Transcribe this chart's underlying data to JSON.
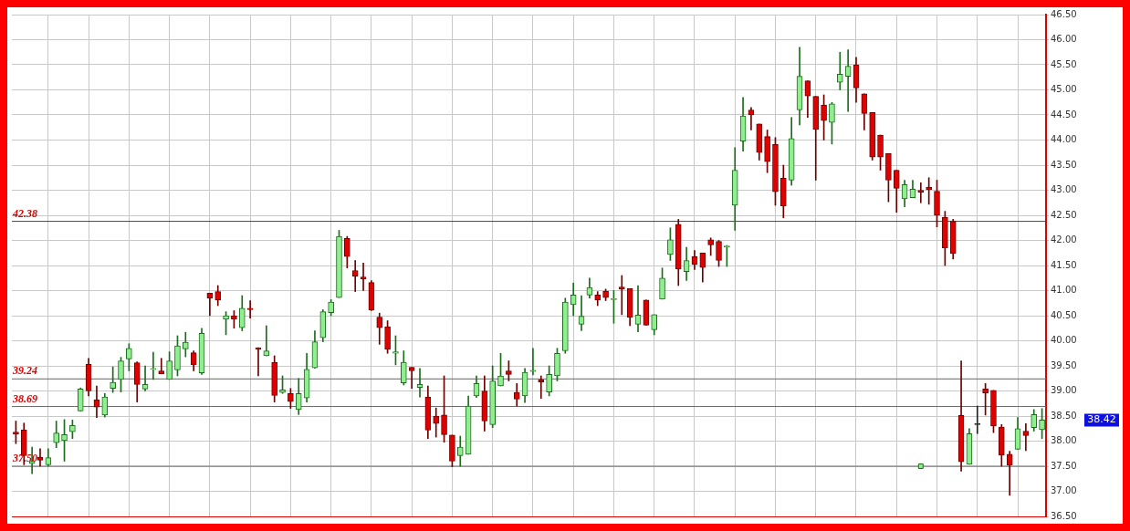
{
  "chart_data": {
    "type": "candlestick",
    "tick_labels": "y",
    "grid": true,
    "categories": [
      null,
      null,
      null,
      null,
      null,
      null,
      null,
      null,
      null,
      null,
      null,
      null,
      null,
      null,
      null,
      null,
      null,
      null,
      null,
      null,
      null,
      null,
      null,
      null,
      null,
      null,
      null,
      null,
      null,
      null,
      null,
      null,
      null,
      null,
      null,
      null,
      null,
      null,
      null,
      null,
      null,
      null,
      null,
      null,
      null,
      null,
      null,
      null,
      null,
      null,
      null,
      null,
      null,
      null,
      null,
      null,
      null,
      null,
      null,
      null,
      null,
      null,
      null,
      null,
      null,
      null,
      null,
      null,
      null,
      null,
      null,
      null,
      null,
      null,
      null,
      null,
      null,
      null,
      null,
      null,
      null,
      null,
      null,
      null,
      null,
      null,
      null,
      null,
      null,
      null,
      null,
      null,
      null,
      null,
      null,
      null,
      null,
      null,
      null,
      null,
      null,
      null,
      null,
      null,
      null,
      null,
      null,
      null,
      null,
      null,
      null,
      null,
      null,
      null,
      null,
      null,
      null,
      null,
      null,
      null,
      null,
      null,
      null,
      null,
      null,
      null,
      null,
      null
    ],
    "ohlc": [
      [
        38.18,
        38.4,
        37.95,
        38.14
      ],
      [
        38.22,
        38.36,
        37.53,
        37.71
      ],
      [
        37.55,
        37.88,
        37.35,
        37.6
      ],
      [
        37.68,
        37.85,
        37.5,
        37.62
      ],
      [
        37.53,
        37.85,
        37.5,
        37.67
      ],
      [
        37.97,
        38.4,
        37.87,
        38.16
      ],
      [
        38.01,
        38.43,
        37.6,
        38.13
      ],
      [
        38.19,
        38.42,
        38.05,
        38.31
      ],
      [
        38.6,
        39.06,
        38.6,
        39.04
      ],
      [
        39.53,
        39.65,
        38.9,
        39.0
      ],
      [
        38.82,
        39.1,
        38.47,
        38.68
      ],
      [
        38.52,
        38.95,
        38.48,
        38.88
      ],
      [
        39.05,
        39.48,
        38.97,
        39.17
      ],
      [
        39.23,
        39.67,
        38.98,
        39.6
      ],
      [
        39.64,
        39.94,
        39.4,
        39.85
      ],
      [
        39.56,
        39.58,
        38.78,
        39.13
      ],
      [
        39.04,
        39.5,
        39.0,
        39.13
      ],
      [
        39.43,
        39.77,
        39.23,
        39.44
      ],
      [
        39.4,
        39.65,
        39.34,
        39.34
      ],
      [
        39.23,
        39.78,
        39.23,
        39.6
      ],
      [
        39.42,
        40.1,
        39.3,
        39.9
      ],
      [
        39.84,
        40.17,
        39.68,
        39.97
      ],
      [
        39.76,
        39.8,
        39.4,
        39.52
      ],
      [
        39.36,
        40.25,
        39.33,
        40.15
      ],
      [
        40.95,
        40.95,
        40.5,
        40.85
      ],
      [
        40.98,
        41.1,
        40.7,
        40.81
      ],
      [
        40.43,
        40.58,
        40.12,
        40.5
      ],
      [
        40.5,
        40.6,
        40.25,
        40.43
      ],
      [
        40.26,
        40.9,
        40.2,
        40.65
      ],
      [
        40.65,
        40.8,
        40.45,
        40.62
      ],
      [
        39.86,
        39.86,
        39.3,
        39.83
      ],
      [
        39.7,
        40.3,
        39.7,
        39.8
      ],
      [
        39.57,
        39.7,
        38.78,
        38.91
      ],
      [
        38.97,
        39.3,
        38.95,
        39.02
      ],
      [
        38.95,
        39.05,
        38.65,
        38.79
      ],
      [
        38.63,
        39.25,
        38.53,
        38.95
      ],
      [
        38.86,
        39.75,
        38.78,
        39.43
      ],
      [
        39.46,
        40.2,
        39.45,
        39.98
      ],
      [
        40.06,
        40.62,
        39.98,
        40.58
      ],
      [
        40.56,
        40.82,
        40.5,
        40.77
      ],
      [
        40.86,
        42.2,
        40.86,
        42.08
      ],
      [
        42.04,
        42.08,
        41.45,
        41.68
      ],
      [
        41.4,
        41.6,
        40.98,
        41.29
      ],
      [
        41.27,
        41.55,
        41.0,
        41.23
      ],
      [
        41.16,
        41.2,
        40.6,
        40.61
      ],
      [
        40.47,
        40.55,
        39.93,
        40.26
      ],
      [
        40.28,
        40.4,
        39.75,
        39.83
      ],
      [
        39.75,
        40.1,
        39.52,
        39.78
      ],
      [
        39.16,
        39.8,
        39.12,
        39.57
      ],
      [
        39.47,
        39.47,
        39.05,
        39.4
      ],
      [
        39.07,
        39.45,
        38.88,
        39.13
      ],
      [
        38.88,
        39.1,
        38.05,
        38.22
      ],
      [
        38.5,
        38.66,
        38.08,
        38.35
      ],
      [
        38.52,
        39.3,
        37.98,
        38.13
      ],
      [
        38.12,
        38.12,
        37.49,
        37.6
      ],
      [
        37.71,
        38.1,
        37.5,
        37.88
      ],
      [
        37.74,
        38.9,
        37.74,
        38.7
      ],
      [
        38.9,
        39.3,
        38.87,
        39.15
      ],
      [
        39.0,
        39.3,
        38.2,
        38.4
      ],
      [
        38.33,
        39.5,
        38.27,
        39.2
      ],
      [
        39.1,
        39.75,
        39.1,
        39.3
      ],
      [
        39.4,
        39.6,
        39.2,
        39.33
      ],
      [
        38.97,
        39.15,
        38.7,
        38.84
      ],
      [
        38.9,
        39.45,
        38.77,
        39.37
      ],
      [
        39.39,
        39.85,
        39.32,
        39.41
      ],
      [
        39.22,
        39.3,
        38.85,
        39.18
      ],
      [
        38.98,
        39.5,
        38.9,
        39.33
      ],
      [
        39.3,
        39.85,
        39.2,
        39.75
      ],
      [
        39.8,
        40.85,
        39.75,
        40.77
      ],
      [
        40.72,
        41.15,
        40.5,
        40.91
      ],
      [
        40.33,
        40.9,
        40.2,
        40.49
      ],
      [
        40.91,
        41.25,
        40.85,
        41.06
      ],
      [
        40.91,
        40.98,
        40.7,
        40.81
      ],
      [
        40.99,
        41.03,
        40.8,
        40.86
      ],
      [
        40.82,
        41.0,
        40.35,
        40.84
      ],
      [
        41.07,
        41.3,
        40.52,
        41.03
      ],
      [
        41.04,
        41.04,
        40.3,
        40.47
      ],
      [
        40.33,
        41.1,
        40.18,
        40.51
      ],
      [
        40.81,
        40.81,
        40.31,
        40.31
      ],
      [
        40.22,
        40.52,
        40.12,
        40.52
      ],
      [
        40.83,
        41.45,
        40.83,
        41.25
      ],
      [
        41.72,
        42.25,
        41.6,
        42.01
      ],
      [
        42.32,
        42.42,
        41.1,
        41.43
      ],
      [
        41.38,
        41.86,
        41.2,
        41.6
      ],
      [
        41.68,
        41.8,
        41.42,
        41.52
      ],
      [
        41.75,
        41.75,
        41.17,
        41.46
      ],
      [
        42.01,
        42.05,
        41.7,
        41.91
      ],
      [
        41.98,
        42.0,
        41.48,
        41.6
      ],
      [
        41.87,
        41.9,
        41.48,
        41.88
      ],
      [
        42.7,
        43.85,
        42.2,
        43.4
      ],
      [
        43.98,
        44.85,
        43.78,
        44.48
      ],
      [
        44.6,
        44.65,
        44.2,
        44.5
      ],
      [
        44.32,
        44.32,
        43.6,
        43.75
      ],
      [
        44.07,
        44.2,
        43.35,
        43.57
      ],
      [
        43.91,
        44.05,
        42.7,
        42.97
      ],
      [
        43.24,
        43.5,
        42.45,
        42.69
      ],
      [
        43.2,
        44.45,
        43.1,
        44.03
      ],
      [
        44.6,
        45.85,
        44.3,
        45.27
      ],
      [
        45.18,
        45.18,
        44.45,
        44.88
      ],
      [
        44.87,
        44.87,
        43.2,
        44.21
      ],
      [
        44.7,
        44.9,
        44.0,
        44.39
      ],
      [
        44.35,
        44.75,
        43.92,
        44.72
      ],
      [
        45.15,
        45.75,
        45.0,
        45.31
      ],
      [
        45.27,
        45.8,
        44.57,
        45.47
      ],
      [
        45.5,
        45.65,
        44.75,
        45.04
      ],
      [
        44.92,
        44.92,
        44.2,
        44.53
      ],
      [
        44.55,
        44.55,
        43.6,
        43.66
      ],
      [
        44.1,
        44.1,
        43.4,
        43.66
      ],
      [
        43.73,
        43.73,
        42.77,
        43.2
      ],
      [
        43.4,
        43.4,
        42.56,
        43.04
      ],
      [
        42.83,
        43.2,
        42.67,
        43.11
      ],
      [
        42.85,
        43.2,
        42.85,
        43.02
      ],
      [
        43.0,
        43.15,
        42.75,
        42.96
      ],
      [
        43.06,
        43.25,
        42.72,
        43.01
      ],
      [
        42.98,
        43.2,
        42.27,
        42.5
      ],
      [
        42.46,
        42.58,
        41.5,
        41.85
      ],
      [
        42.38,
        42.42,
        41.63,
        41.74
      ],
      [
        38.51,
        39.6,
        37.4,
        37.59
      ],
      [
        37.54,
        38.25,
        37.54,
        38.15
      ],
      [
        38.33,
        38.7,
        38.15,
        38.33
      ],
      [
        39.04,
        39.15,
        38.52,
        38.96
      ],
      [
        39.01,
        39.01,
        38.17,
        38.3
      ],
      [
        38.28,
        38.33,
        37.5,
        37.72
      ],
      [
        37.74,
        37.8,
        36.92,
        37.52
      ],
      [
        37.84,
        38.47,
        37.84,
        38.25
      ],
      [
        38.2,
        38.35,
        37.81,
        38.11
      ],
      [
        38.27,
        38.63,
        38.2,
        38.53
      ],
      [
        38.23,
        38.65,
        38.05,
        38.42
      ]
    ],
    "series": [
      {
        "type": "scatter",
        "marker": "square",
        "color": "#90ee90",
        "values": [
          null,
          null,
          null,
          null,
          null,
          null,
          null,
          null,
          null,
          null,
          null,
          null,
          null,
          null,
          null,
          null,
          null,
          null,
          null,
          null,
          null,
          null,
          null,
          null,
          null,
          null,
          null,
          null,
          null,
          null,
          null,
          null,
          null,
          null,
          null,
          null,
          null,
          null,
          null,
          null,
          null,
          null,
          null,
          null,
          null,
          null,
          null,
          null,
          null,
          null,
          null,
          null,
          null,
          null,
          null,
          null,
          null,
          null,
          null,
          null,
          null,
          null,
          null,
          null,
          null,
          null,
          null,
          null,
          null,
          null,
          null,
          null,
          null,
          null,
          null,
          null,
          null,
          null,
          null,
          null,
          null,
          null,
          null,
          null,
          null,
          null,
          null,
          null,
          null,
          null,
          null,
          null,
          null,
          null,
          null,
          null,
          null,
          null,
          null,
          null,
          null,
          null,
          null,
          null,
          null,
          null,
          null,
          null,
          null,
          null,
          null,
          null,
          37.5,
          null,
          null,
          null,
          null,
          null,
          null,
          null,
          null,
          null,
          null,
          null,
          null,
          null,
          null,
          null
        ]
      }
    ],
    "ylim": [
      36.5,
      46.5
    ],
    "yticks": [
      {
        "value": 36.5,
        "label": "36.50"
      },
      {
        "value": 37,
        "label": "37.00"
      },
      {
        "value": 37.5,
        "label": "37.50"
      },
      {
        "value": 38,
        "label": "38.00"
      },
      {
        "value": 38.5,
        "label": "38.50"
      },
      {
        "value": 39,
        "label": "39.00"
      },
      {
        "value": 39.5,
        "label": "39.50"
      },
      {
        "value": 40,
        "label": "40.00"
      },
      {
        "value": 40.5,
        "label": "40.50"
      },
      {
        "value": 41,
        "label": "41.00"
      },
      {
        "value": 41.5,
        "label": "41.50"
      },
      {
        "value": 42,
        "label": "42.00"
      },
      {
        "value": 42.5,
        "label": "42.50"
      },
      {
        "value": 43,
        "label": "43.00"
      },
      {
        "value": 43.5,
        "label": "43.50"
      },
      {
        "value": 44,
        "label": "44.00"
      },
      {
        "value": 44.5,
        "label": "44.50"
      },
      {
        "value": 45,
        "label": "45.00"
      },
      {
        "value": 45.5,
        "label": "45.50"
      },
      {
        "value": 46,
        "label": "46.00"
      },
      {
        "value": 46.5,
        "label": "46.50"
      }
    ],
    "ref_lines": [
      {
        "axis": "y",
        "value": 42.38,
        "label": "42.38",
        "color": "#444444"
      },
      {
        "axis": "y",
        "value": 39.24,
        "label": "39.24",
        "color": "#666666"
      },
      {
        "axis": "y",
        "value": 38.69,
        "label": "38.69",
        "color": "#666666"
      },
      {
        "axis": "y",
        "value": 37.5,
        "label": "37.50",
        "color": "#666666"
      }
    ],
    "annotations": [
      "38.42"
    ]
  }
}
